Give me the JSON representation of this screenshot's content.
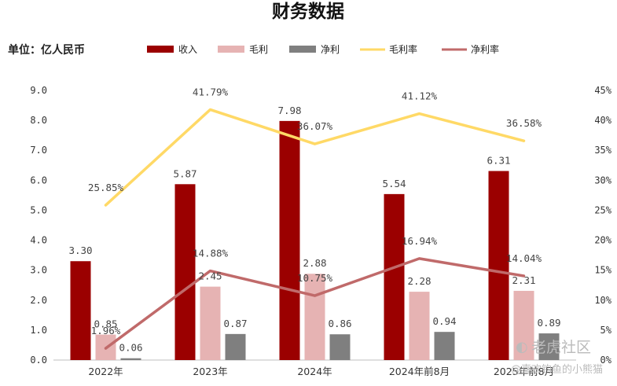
{
  "title": "财务数据",
  "unit_label": "单位：亿人民币",
  "watermark": {
    "brand": "老虎社区",
    "author": "@喜欢钓鱼的小熊猫"
  },
  "colors": {
    "revenue": "#9b0000",
    "gross_profit": "#e6b3b3",
    "net_profit": "#7f7f7f",
    "gross_margin": "#ffd966",
    "net_margin": "#c06a6a"
  },
  "chart_data": {
    "type": "bar",
    "categories": [
      "2022年",
      "2023年",
      "2024年",
      "2024年前8月",
      "2025年前8月"
    ],
    "series": [
      {
        "name": "收入",
        "type": "bar",
        "axis": "left",
        "values": [
          3.3,
          5.87,
          7.98,
          5.54,
          6.31
        ],
        "labels": [
          "3.30",
          "5.87",
          "7.98",
          "5.54",
          "6.31"
        ]
      },
      {
        "name": "毛利",
        "type": "bar",
        "axis": "left",
        "values": [
          0.85,
          2.45,
          2.88,
          2.28,
          2.31
        ],
        "labels": [
          "0.85",
          "2.45",
          "2.88",
          "2.28",
          "2.31"
        ]
      },
      {
        "name": "净利",
        "type": "bar",
        "axis": "left",
        "values": [
          0.06,
          0.87,
          0.86,
          0.94,
          0.89
        ],
        "labels": [
          "0.06",
          "0.87",
          "0.86",
          "0.94",
          "0.89"
        ]
      },
      {
        "name": "毛利率",
        "type": "line",
        "axis": "right",
        "values": [
          25.85,
          41.79,
          36.07,
          41.12,
          36.58
        ],
        "labels": [
          "25.85%",
          "41.79%",
          "36.07%",
          "41.12%",
          "36.58%"
        ]
      },
      {
        "name": "净利率",
        "type": "line",
        "axis": "right",
        "values": [
          1.96,
          14.88,
          10.75,
          16.94,
          14.04
        ],
        "labels": [
          "1.96%",
          "14.88%",
          "10.75%",
          "16.94%",
          "14.04%"
        ]
      }
    ],
    "y_left": {
      "min": 0,
      "max": 9,
      "ticks": [
        "0.0",
        "1.0",
        "2.0",
        "3.0",
        "4.0",
        "5.0",
        "6.0",
        "7.0",
        "8.0",
        "9.0"
      ]
    },
    "y_right": {
      "min": 0,
      "max": 45,
      "ticks": [
        "0%",
        "5%",
        "10%",
        "15%",
        "20%",
        "25%",
        "30%",
        "35%",
        "40%",
        "45%"
      ]
    },
    "grid": false,
    "legend_position": "top"
  }
}
